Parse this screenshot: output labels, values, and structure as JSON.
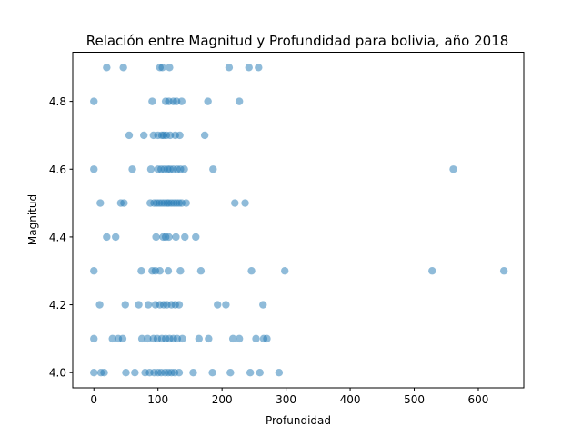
{
  "chart_data": {
    "type": "scatter",
    "title": "Relación entre Magnitud y Profundidad para bolivia, año 2018",
    "xlabel": "Profundidad",
    "ylabel": "Magnitud",
    "xlim": [
      -33,
      671
    ],
    "ylim": [
      3.955,
      4.945
    ],
    "xticks": [
      0,
      100,
      200,
      300,
      400,
      500,
      600
    ],
    "yticks": [
      4.0,
      4.2,
      4.4,
      4.6,
      4.8
    ],
    "ytick_labels": [
      "4.0",
      "4.2",
      "4.4",
      "4.6",
      "4.8"
    ],
    "grid": false,
    "legend": "none",
    "color": "#1f77b4",
    "series": [
      {
        "points": [
          [
            20,
            4.9
          ],
          [
            46,
            4.9
          ],
          [
            103,
            4.9
          ],
          [
            107,
            4.9
          ],
          [
            118,
            4.9
          ],
          [
            211,
            4.9
          ],
          [
            242,
            4.9
          ],
          [
            257,
            4.9
          ],
          [
            0,
            4.8
          ],
          [
            91,
            4.8
          ],
          [
            112,
            4.8
          ],
          [
            117,
            4.8
          ],
          [
            124,
            4.8
          ],
          [
            129,
            4.8
          ],
          [
            137,
            4.8
          ],
          [
            178,
            4.8
          ],
          [
            227,
            4.8
          ],
          [
            55,
            4.7
          ],
          [
            78,
            4.7
          ],
          [
            93,
            4.7
          ],
          [
            100,
            4.7
          ],
          [
            106,
            4.7
          ],
          [
            109,
            4.7
          ],
          [
            113,
            4.7
          ],
          [
            119,
            4.7
          ],
          [
            127,
            4.7
          ],
          [
            134,
            4.7
          ],
          [
            173,
            4.7
          ],
          [
            0,
            4.6
          ],
          [
            60,
            4.6
          ],
          [
            89,
            4.6
          ],
          [
            100,
            4.6
          ],
          [
            105,
            4.6
          ],
          [
            110,
            4.6
          ],
          [
            115,
            4.6
          ],
          [
            119,
            4.6
          ],
          [
            124,
            4.6
          ],
          [
            130,
            4.6
          ],
          [
            135,
            4.6
          ],
          [
            141,
            4.6
          ],
          [
            186,
            4.6
          ],
          [
            561,
            4.6
          ],
          [
            10,
            4.5
          ],
          [
            42,
            4.5
          ],
          [
            47,
            4.5
          ],
          [
            88,
            4.5
          ],
          [
            94,
            4.5
          ],
          [
            98,
            4.5
          ],
          [
            102,
            4.5
          ],
          [
            106,
            4.5
          ],
          [
            110,
            4.5
          ],
          [
            114,
            4.5
          ],
          [
            117,
            4.5
          ],
          [
            121,
            4.5
          ],
          [
            125,
            4.5
          ],
          [
            129,
            4.5
          ],
          [
            133,
            4.5
          ],
          [
            137,
            4.5
          ],
          [
            144,
            4.5
          ],
          [
            220,
            4.5
          ],
          [
            236,
            4.5
          ],
          [
            20,
            4.4
          ],
          [
            34,
            4.4
          ],
          [
            97,
            4.4
          ],
          [
            108,
            4.4
          ],
          [
            112,
            4.4
          ],
          [
            117,
            4.4
          ],
          [
            128,
            4.4
          ],
          [
            142,
            4.4
          ],
          [
            159,
            4.4
          ],
          [
            0,
            4.3
          ],
          [
            74,
            4.3
          ],
          [
            91,
            4.3
          ],
          [
            96,
            4.3
          ],
          [
            103,
            4.3
          ],
          [
            116,
            4.3
          ],
          [
            135,
            4.3
          ],
          [
            167,
            4.3
          ],
          [
            246,
            4.3
          ],
          [
            298,
            4.3
          ],
          [
            528,
            4.3
          ],
          [
            640,
            4.3
          ],
          [
            9,
            4.2
          ],
          [
            49,
            4.2
          ],
          [
            70,
            4.2
          ],
          [
            85,
            4.2
          ],
          [
            96,
            4.2
          ],
          [
            103,
            4.2
          ],
          [
            109,
            4.2
          ],
          [
            114,
            4.2
          ],
          [
            121,
            4.2
          ],
          [
            127,
            4.2
          ],
          [
            133,
            4.2
          ],
          [
            193,
            4.2
          ],
          [
            206,
            4.2
          ],
          [
            264,
            4.2
          ],
          [
            0,
            4.1
          ],
          [
            29,
            4.1
          ],
          [
            38,
            4.1
          ],
          [
            45,
            4.1
          ],
          [
            75,
            4.1
          ],
          [
            84,
            4.1
          ],
          [
            93,
            4.1
          ],
          [
            99,
            4.1
          ],
          [
            106,
            4.1
          ],
          [
            112,
            4.1
          ],
          [
            118,
            4.1
          ],
          [
            124,
            4.1
          ],
          [
            130,
            4.1
          ],
          [
            138,
            4.1
          ],
          [
            164,
            4.1
          ],
          [
            179,
            4.1
          ],
          [
            217,
            4.1
          ],
          [
            227,
            4.1
          ],
          [
            253,
            4.1
          ],
          [
            265,
            4.1
          ],
          [
            270,
            4.1
          ],
          [
            0,
            4.0
          ],
          [
            11,
            4.0
          ],
          [
            16,
            4.0
          ],
          [
            50,
            4.0
          ],
          [
            64,
            4.0
          ],
          [
            80,
            4.0
          ],
          [
            87,
            4.0
          ],
          [
            94,
            4.0
          ],
          [
            100,
            4.0
          ],
          [
            105,
            4.0
          ],
          [
            111,
            4.0
          ],
          [
            116,
            4.0
          ],
          [
            121,
            4.0
          ],
          [
            126,
            4.0
          ],
          [
            133,
            4.0
          ],
          [
            155,
            4.0
          ],
          [
            185,
            4.0
          ],
          [
            213,
            4.0
          ],
          [
            244,
            4.0
          ],
          [
            259,
            4.0
          ],
          [
            289,
            4.0
          ]
        ]
      }
    ]
  }
}
